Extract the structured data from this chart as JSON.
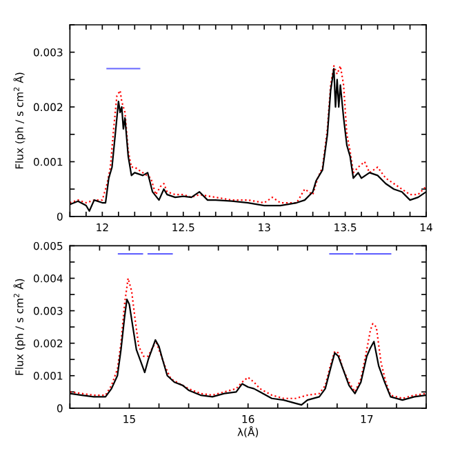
{
  "chart_data": [
    {
      "type": "line",
      "ylabel": "Flux (ph / s cm$^{2}$ Å)",
      "grid": false,
      "legend": false,
      "xlim": [
        11.8,
        14
      ],
      "ylim": [
        0,
        0.0035
      ],
      "xticks": [
        {
          "value": 11.8,
          "label": null
        },
        {
          "value": 11.9,
          "label": null
        },
        12,
        {
          "value": 12.1,
          "label": null
        },
        {
          "value": 12.2,
          "label": null
        },
        {
          "value": 12.3,
          "label": null
        },
        {
          "value": 12.4,
          "label": null
        },
        12.5,
        {
          "value": 12.6,
          "label": null
        },
        {
          "value": 12.7,
          "label": null
        },
        {
          "value": 12.8,
          "label": null
        },
        {
          "value": 12.9,
          "label": null
        },
        13,
        {
          "value": 13.1,
          "label": null
        },
        {
          "value": 13.2,
          "label": null
        },
        {
          "value": 13.3,
          "label": null
        },
        {
          "value": 13.4,
          "label": null
        },
        13.5,
        {
          "value": 13.6,
          "label": null
        },
        {
          "value": 13.7,
          "label": null
        },
        {
          "value": 13.8,
          "label": null
        },
        {
          "value": 13.9,
          "label": null
        },
        14
      ],
      "yticks": [
        0,
        {
          "value": 0.0005,
          "label": null
        },
        0.001,
        {
          "value": 0.0015,
          "label": null
        },
        0.002,
        {
          "value": 0.0025,
          "label": null
        },
        0.003,
        {
          "value": 0.0035,
          "label": null
        }
      ],
      "series": [
        {
          "color": "#ff0000",
          "line_style": "dotted",
          "x": [
            11.8,
            11.85,
            11.9,
            11.95,
            12.0,
            12.03,
            12.05,
            12.07,
            12.09,
            12.11,
            12.12,
            12.14,
            12.16,
            12.18,
            12.2,
            12.25,
            12.3,
            12.33,
            12.36,
            12.38,
            12.4,
            12.45,
            12.5,
            12.55,
            12.6,
            12.7,
            12.8,
            12.9,
            13.0,
            13.05,
            13.1,
            13.2,
            13.25,
            13.3,
            13.33,
            13.36,
            13.39,
            13.41,
            13.43,
            13.45,
            13.47,
            13.49,
            13.51,
            13.53,
            13.55,
            13.58,
            13.62,
            13.65,
            13.7,
            13.75,
            13.8,
            13.85,
            13.9,
            13.95,
            14.0
          ],
          "values": [
            0.00025,
            0.0003,
            0.00025,
            0.0003,
            0.0003,
            0.0006,
            0.0009,
            0.0016,
            0.0022,
            0.0023,
            0.0021,
            0.0019,
            0.0012,
            0.0009,
            0.0009,
            0.0008,
            0.0007,
            0.0004,
            0.00055,
            0.0006,
            0.00045,
            0.0004,
            0.0004,
            0.00035,
            0.0004,
            0.00035,
            0.0003,
            0.0003,
            0.00025,
            0.00035,
            0.00025,
            0.00025,
            0.0005,
            0.0004,
            0.0007,
            0.0009,
            0.0016,
            0.0024,
            0.00275,
            0.0026,
            0.00275,
            0.0024,
            0.0015,
            0.0012,
            0.0008,
            0.0009,
            0.001,
            0.0008,
            0.0009,
            0.0007,
            0.0006,
            0.0005,
            0.0004,
            0.0004,
            0.00055
          ]
        },
        {
          "color": "#000000",
          "line_style": "solid",
          "x": [
            11.8,
            11.85,
            11.9,
            11.92,
            11.95,
            12.0,
            12.02,
            12.04,
            12.06,
            12.08,
            12.1,
            12.11,
            12.12,
            12.13,
            12.14,
            12.16,
            12.18,
            12.2,
            12.25,
            12.28,
            12.31,
            12.35,
            12.38,
            12.4,
            12.45,
            12.5,
            12.55,
            12.6,
            12.65,
            12.7,
            12.8,
            12.9,
            13.0,
            13.1,
            13.2,
            13.25,
            13.3,
            13.32,
            13.36,
            13.39,
            13.41,
            13.43,
            13.44,
            13.45,
            13.46,
            13.47,
            13.49,
            13.51,
            13.53,
            13.55,
            13.58,
            13.6,
            13.65,
            13.7,
            13.75,
            13.8,
            13.85,
            13.9,
            13.95,
            14.0
          ],
          "values": [
            0.00022,
            0.00028,
            0.0002,
            0.0001,
            0.0003,
            0.00025,
            0.00025,
            0.0007,
            0.0009,
            0.0015,
            0.0021,
            0.0019,
            0.002,
            0.0016,
            0.0018,
            0.0011,
            0.00075,
            0.0008,
            0.00075,
            0.0008,
            0.00045,
            0.0003,
            0.0005,
            0.0004,
            0.00035,
            0.00037,
            0.00035,
            0.00045,
            0.0003,
            0.0003,
            0.00028,
            0.00025,
            0.0002,
            0.0002,
            0.00025,
            0.0003,
            0.00045,
            0.00065,
            0.00085,
            0.0015,
            0.0023,
            0.0027,
            0.002,
            0.0025,
            0.002,
            0.0024,
            0.0018,
            0.0013,
            0.0011,
            0.0007,
            0.0008,
            0.0007,
            0.0008,
            0.00075,
            0.0006,
            0.0005,
            0.00045,
            0.0003,
            0.00035,
            0.00045
          ]
        },
        {
          "color": "#6666ff",
          "line_style": "solid",
          "x": [
            12.03,
            12.23
          ],
          "values": [
            0.0027,
            0.0027
          ]
        }
      ]
    },
    {
      "type": "line",
      "ylabel": "Flux (ph / s cm$^{2}$ Å)",
      "xlabel": "λ(Å)",
      "grid": false,
      "legend": false,
      "xlim": [
        14.5,
        17.5
      ],
      "ylim": [
        0,
        0.005
      ],
      "xticks": [
        {
          "value": 14.5,
          "label": null
        },
        {
          "value": 14.75,
          "label": null
        },
        15,
        {
          "value": 15.25,
          "label": null
        },
        {
          "value": 15.5,
          "label": null
        },
        {
          "value": 15.75,
          "label": null
        },
        16,
        {
          "value": 16.25,
          "label": null
        },
        {
          "value": 16.5,
          "label": null
        },
        {
          "value": 16.75,
          "label": null
        },
        17,
        {
          "value": 17.25,
          "label": null
        },
        {
          "value": 17.5,
          "label": null
        }
      ],
      "yticks": [
        0,
        {
          "value": 0.0005,
          "label": null
        },
        0.001,
        {
          "value": 0.0015,
          "label": null
        },
        0.002,
        {
          "value": 0.0025,
          "label": null
        },
        0.003,
        {
          "value": 0.0035,
          "label": null
        },
        0.004,
        {
          "value": 0.0045,
          "label": null
        },
        0.005
      ],
      "series": [
        {
          "color": "#ff0000",
          "line_style": "dotted",
          "x": [
            14.5,
            14.6,
            14.7,
            14.8,
            14.85,
            14.9,
            14.93,
            14.96,
            14.99,
            15.02,
            15.05,
            15.08,
            15.12,
            15.16,
            15.2,
            15.23,
            15.26,
            15.3,
            15.35,
            15.4,
            15.5,
            15.6,
            15.7,
            15.8,
            15.9,
            15.95,
            16.0,
            16.05,
            16.1,
            16.2,
            16.3,
            16.4,
            16.5,
            16.6,
            16.65,
            16.7,
            16.73,
            16.76,
            16.8,
            16.85,
            16.9,
            16.95,
            17.0,
            17.03,
            17.05,
            17.08,
            17.12,
            17.16,
            17.2,
            17.3,
            17.4,
            17.5
          ],
          "values": [
            0.0005,
            0.00045,
            0.0004,
            0.0004,
            0.0007,
            0.0012,
            0.002,
            0.0032,
            0.004,
            0.0036,
            0.0027,
            0.0019,
            0.0016,
            0.0016,
            0.0019,
            0.002,
            0.0017,
            0.0013,
            0.0009,
            0.0008,
            0.0006,
            0.00045,
            0.0004,
            0.0005,
            0.0006,
            0.0008,
            0.00095,
            0.0008,
            0.0006,
            0.0004,
            0.0003,
            0.0003,
            0.0004,
            0.00045,
            0.0007,
            0.0014,
            0.00175,
            0.0017,
            0.0012,
            0.0008,
            0.0005,
            0.0009,
            0.0018,
            0.0024,
            0.0026,
            0.0025,
            0.0014,
            0.0008,
            0.0004,
            0.0003,
            0.0004,
            0.00045
          ]
        },
        {
          "color": "#000000",
          "line_style": "solid",
          "x": [
            14.5,
            14.6,
            14.7,
            14.8,
            14.85,
            14.9,
            14.93,
            14.96,
            14.98,
            15.0,
            15.03,
            15.06,
            15.1,
            15.13,
            15.16,
            15.2,
            15.22,
            15.25,
            15.28,
            15.32,
            15.38,
            15.45,
            15.5,
            15.6,
            15.7,
            15.8,
            15.9,
            15.95,
            16.0,
            16.05,
            16.1,
            16.2,
            16.3,
            16.4,
            16.45,
            16.5,
            16.6,
            16.65,
            16.7,
            16.73,
            16.76,
            16.8,
            16.85,
            16.9,
            16.95,
            17.0,
            17.03,
            17.06,
            17.1,
            17.15,
            17.2,
            17.3,
            17.4,
            17.5
          ],
          "values": [
            0.00045,
            0.0004,
            0.00035,
            0.00035,
            0.0006,
            0.001,
            0.0018,
            0.0028,
            0.00335,
            0.0032,
            0.0025,
            0.0018,
            0.0014,
            0.0011,
            0.0015,
            0.0019,
            0.0021,
            0.0019,
            0.0015,
            0.001,
            0.0008,
            0.0007,
            0.00055,
            0.0004,
            0.00035,
            0.00045,
            0.0005,
            0.00075,
            0.00065,
            0.0006,
            0.0005,
            0.0003,
            0.00025,
            0.00015,
            0.0001,
            0.00025,
            0.00035,
            0.0006,
            0.0013,
            0.0017,
            0.0016,
            0.0012,
            0.0007,
            0.00045,
            0.0008,
            0.0016,
            0.00185,
            0.00205,
            0.0013,
            0.0008,
            0.00035,
            0.00025,
            0.00035,
            0.0004
          ]
        },
        {
          "color": "#6666ff",
          "line_style": "solid",
          "x": [
            14.91,
            15.11
          ],
          "values": [
            0.00475,
            0.00475
          ]
        },
        {
          "color": "#6666ff",
          "line_style": "solid",
          "x": [
            15.16,
            15.36
          ],
          "values": [
            0.00475,
            0.00475
          ]
        },
        {
          "color": "#6666ff",
          "line_style": "solid",
          "x": [
            16.69,
            16.88
          ],
          "values": [
            0.00475,
            0.00475
          ]
        },
        {
          "color": "#6666ff",
          "line_style": "solid",
          "x": [
            16.91,
            17.2
          ],
          "values": [
            0.00475,
            0.00475
          ]
        }
      ]
    }
  ]
}
